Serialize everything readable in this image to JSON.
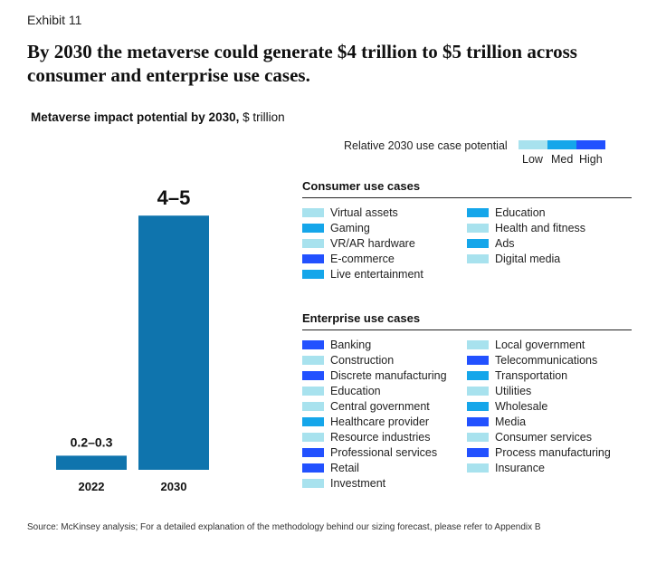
{
  "exhibit": "Exhibit 11",
  "headline": "By 2030 the metaverse could generate $4 trillion to $5 trillion across consumer and enterprise use cases.",
  "subtitle_bold": "Metaverse impact potential by 2030,",
  "subtitle_unit": " $ trillion",
  "colors": {
    "bar": "#0f74ad",
    "low": "#a8e2ee",
    "med": "#15a6ea",
    "high": "#2251ff"
  },
  "chart_data": {
    "type": "bar",
    "categories": [
      "2022",
      "2030"
    ],
    "values": [
      0.25,
      4.5
    ],
    "value_labels": [
      "0.2–0.3",
      "4–5"
    ],
    "ylim": [
      0,
      5
    ]
  },
  "scale": {
    "label": "Relative 2030 use case potential",
    "low": "Low",
    "med": "Med",
    "high": "High"
  },
  "consumer": {
    "title": "Consumer use cases",
    "left": [
      {
        "label": "Virtual assets",
        "level": "low"
      },
      {
        "label": "Gaming",
        "level": "med"
      },
      {
        "label": "VR/AR hardware",
        "level": "low"
      },
      {
        "label": "E-commerce",
        "level": "high"
      },
      {
        "label": "Live entertainment",
        "level": "med"
      }
    ],
    "right": [
      {
        "label": "Education",
        "level": "med"
      },
      {
        "label": "Health and fitness",
        "level": "low"
      },
      {
        "label": "Ads",
        "level": "med"
      },
      {
        "label": "Digital media",
        "level": "low"
      }
    ]
  },
  "enterprise": {
    "title": "Enterprise use cases",
    "left": [
      {
        "label": "Banking",
        "level": "high"
      },
      {
        "label": "Construction",
        "level": "low"
      },
      {
        "label": "Discrete manufacturing",
        "level": "high"
      },
      {
        "label": "Education",
        "level": "low"
      },
      {
        "label": "Central government",
        "level": "low"
      },
      {
        "label": "Healthcare provider",
        "level": "med"
      },
      {
        "label": "Resource industries",
        "level": "low"
      },
      {
        "label": "Professional services",
        "level": "high"
      },
      {
        "label": "Retail",
        "level": "high"
      },
      {
        "label": "Investment",
        "level": "low"
      }
    ],
    "right": [
      {
        "label": "Local government",
        "level": "low"
      },
      {
        "label": "Telecommunications",
        "level": "high"
      },
      {
        "label": "Transportation",
        "level": "med"
      },
      {
        "label": "Utilities",
        "level": "low"
      },
      {
        "label": "Wholesale",
        "level": "med"
      },
      {
        "label": "Media",
        "level": "high"
      },
      {
        "label": "Consumer services",
        "level": "low"
      },
      {
        "label": "Process manufacturing",
        "level": "high"
      },
      {
        "label": "Insurance",
        "level": "low"
      }
    ]
  },
  "source": "Source: McKinsey analysis; For a detailed explanation of the methodology behind our sizing forecast, please refer to Appendix B"
}
